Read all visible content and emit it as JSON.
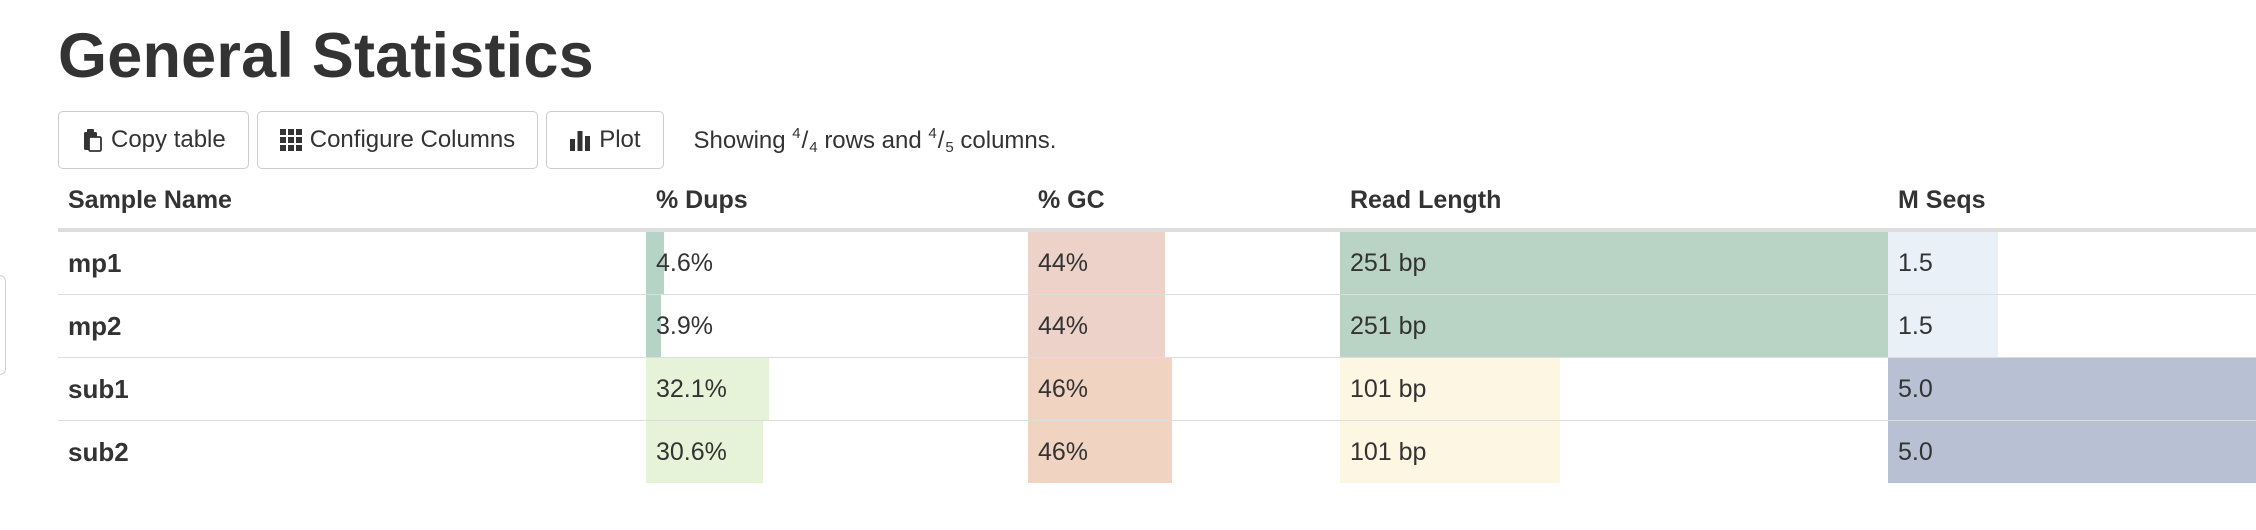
{
  "page_title": "General Statistics",
  "toolbar": {
    "copy_label": "Copy table",
    "configure_label": "Configure Columns",
    "plot_label": "Plot",
    "status_prefix": "Showing",
    "rows_shown": "4",
    "rows_total": "4",
    "rows_word": "rows and",
    "cols_shown": "4",
    "cols_total": "5",
    "cols_word": "columns."
  },
  "table": {
    "headers": {
      "sample": "Sample Name",
      "dups": "% Dups",
      "gc": "% GC",
      "read_length": "Read Length",
      "mseqs": "M Seqs"
    },
    "rows": [
      {
        "name": "mp1",
        "dups": "4.6%",
        "dups_pct": 4.6,
        "dups_color": "#b5d3c6",
        "gc": "44%",
        "gc_pct": 44,
        "gc_color": "#ecd2c8",
        "rl": "251 bp",
        "rl_pct": 100,
        "rl_color": "#b9d3c4",
        "ms": "1.5",
        "ms_pct": 30,
        "ms_color": "#e9f0f7"
      },
      {
        "name": "mp2",
        "dups": "3.9%",
        "dups_pct": 3.9,
        "dups_color": "#b5d3c6",
        "gc": "44%",
        "gc_pct": 44,
        "gc_color": "#ecd2c8",
        "rl": "251 bp",
        "rl_pct": 100,
        "rl_color": "#b9d3c4",
        "ms": "1.5",
        "ms_pct": 30,
        "ms_color": "#e9f0f7"
      },
      {
        "name": "sub1",
        "dups": "32.1%",
        "dups_pct": 32.1,
        "dups_color": "#e6f3d8",
        "gc": "46%",
        "gc_pct": 46,
        "gc_color": "#f1d3c2",
        "rl": "101 bp",
        "rl_pct": 40.2,
        "rl_color": "#fdf6e2",
        "ms": "5.0",
        "ms_pct": 100,
        "ms_color": "#b7c1d3"
      },
      {
        "name": "sub2",
        "dups": "30.6%",
        "dups_pct": 30.6,
        "dups_color": "#e6f3d8",
        "gc": "46%",
        "gc_pct": 46,
        "gc_color": "#f1d3c2",
        "rl": "101 bp",
        "rl_pct": 40.2,
        "rl_color": "#fdf6e2",
        "ms": "5.0",
        "ms_pct": 100,
        "ms_color": "#b7c1d3"
      }
    ]
  }
}
